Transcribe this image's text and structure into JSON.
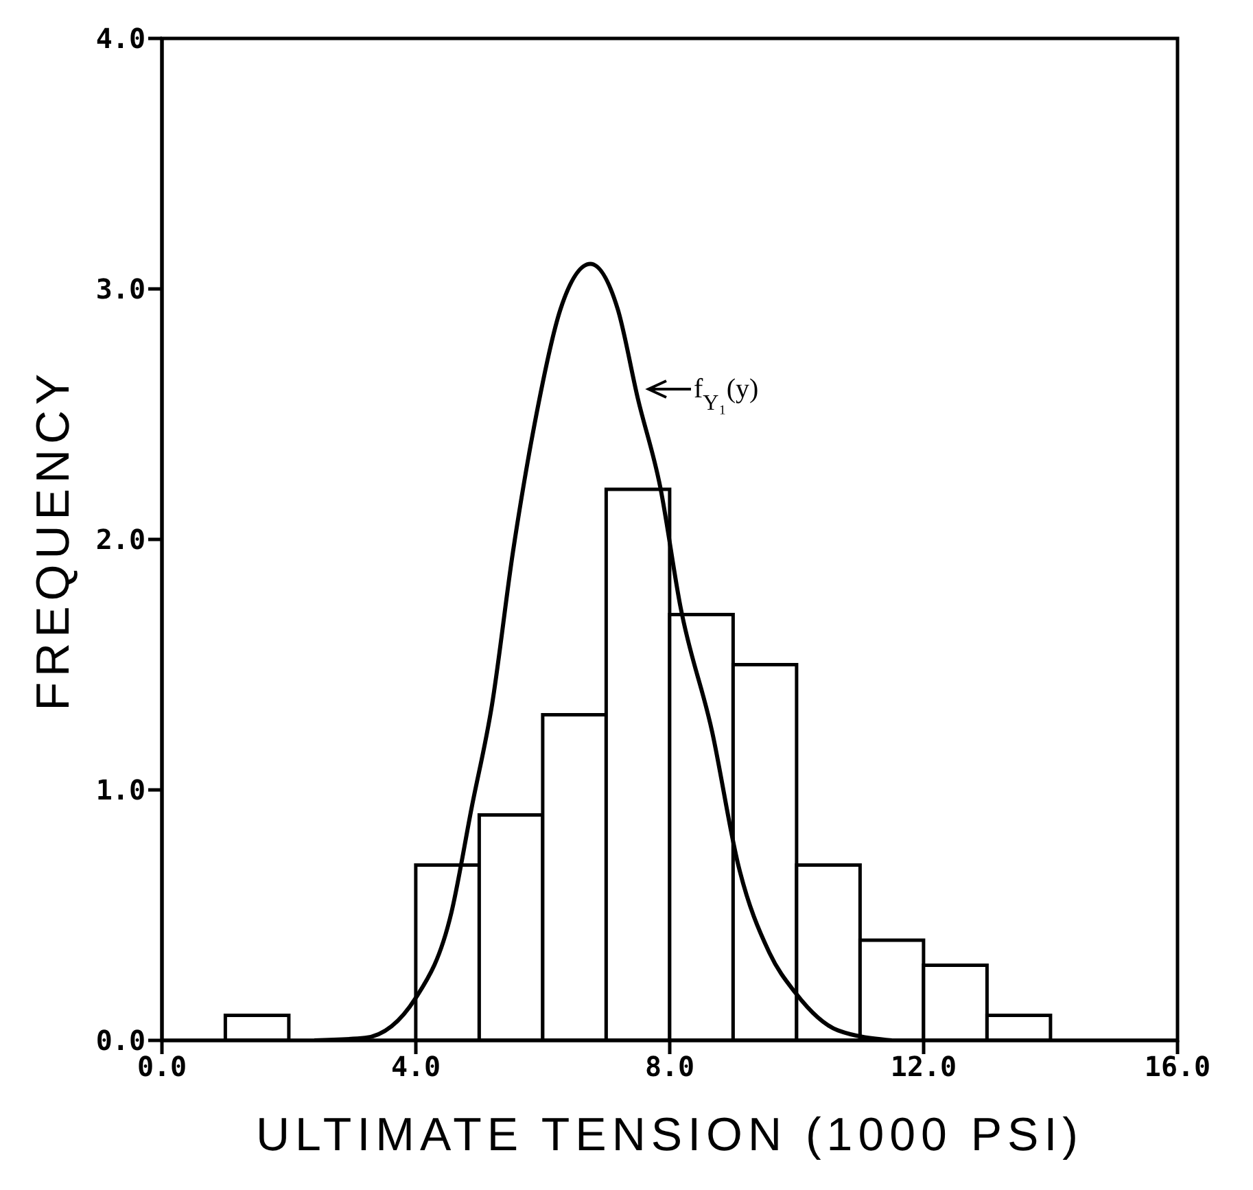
{
  "chart_data": {
    "type": "histogram",
    "xlabel": "ULTIMATE TENSION (1000 PSI)",
    "ylabel": "FREQUENCY",
    "bins": [
      1,
      2,
      3,
      4,
      5,
      6,
      7,
      8,
      9,
      10,
      11,
      12,
      13,
      14
    ],
    "values": [
      0.1,
      0,
      0,
      0.7,
      0.9,
      1.3,
      2.2,
      1.7,
      1.5,
      0.7,
      0.4,
      0.3,
      0.1
    ],
    "color": "#000000",
    "series": [
      {
        "type": "line",
        "color": "#000000",
        "x": [
          2.4,
          3.2,
          4.0,
          4.56,
          4.88,
          5.2,
          5.53,
          5.87,
          6.28,
          6.75,
          7.18,
          7.5,
          7.85,
          8.17,
          8.67,
          9.08,
          9.57,
          9.98,
          10.65,
          11.5
        ],
        "values": [
          0,
          0.01,
          0.17,
          0.51,
          0.93,
          1.34,
          1.95,
          2.46,
          2.92,
          3.1,
          2.92,
          2.56,
          2.21,
          1.73,
          1.23,
          0.7,
          0.35,
          0.19,
          0.04,
          0
        ]
      }
    ],
    "xlim": [
      0,
      16
    ],
    "xticks": [
      {
        "value": 0,
        "label": "0.0"
      },
      {
        "value": 4,
        "label": "4.0"
      },
      {
        "value": 8,
        "label": "8.0"
      },
      {
        "value": 12,
        "label": "12.0"
      },
      {
        "value": 16,
        "label": "16.0"
      }
    ],
    "ylim": [
      0,
      4
    ],
    "yticks": [
      {
        "value": 0,
        "label": "0.0"
      },
      {
        "value": 1,
        "label": "1.0"
      },
      {
        "value": 2,
        "label": "2.0"
      },
      {
        "value": 3,
        "label": "3.0"
      },
      {
        "value": 4,
        "label": "4.0"
      }
    ],
    "annotations": [
      {
        "text": "f$_{Y₁}$(y)",
        "x": 7.6,
        "y": 2.6
      }
    ],
    "marker": "none",
    "line_style": "solid"
  }
}
